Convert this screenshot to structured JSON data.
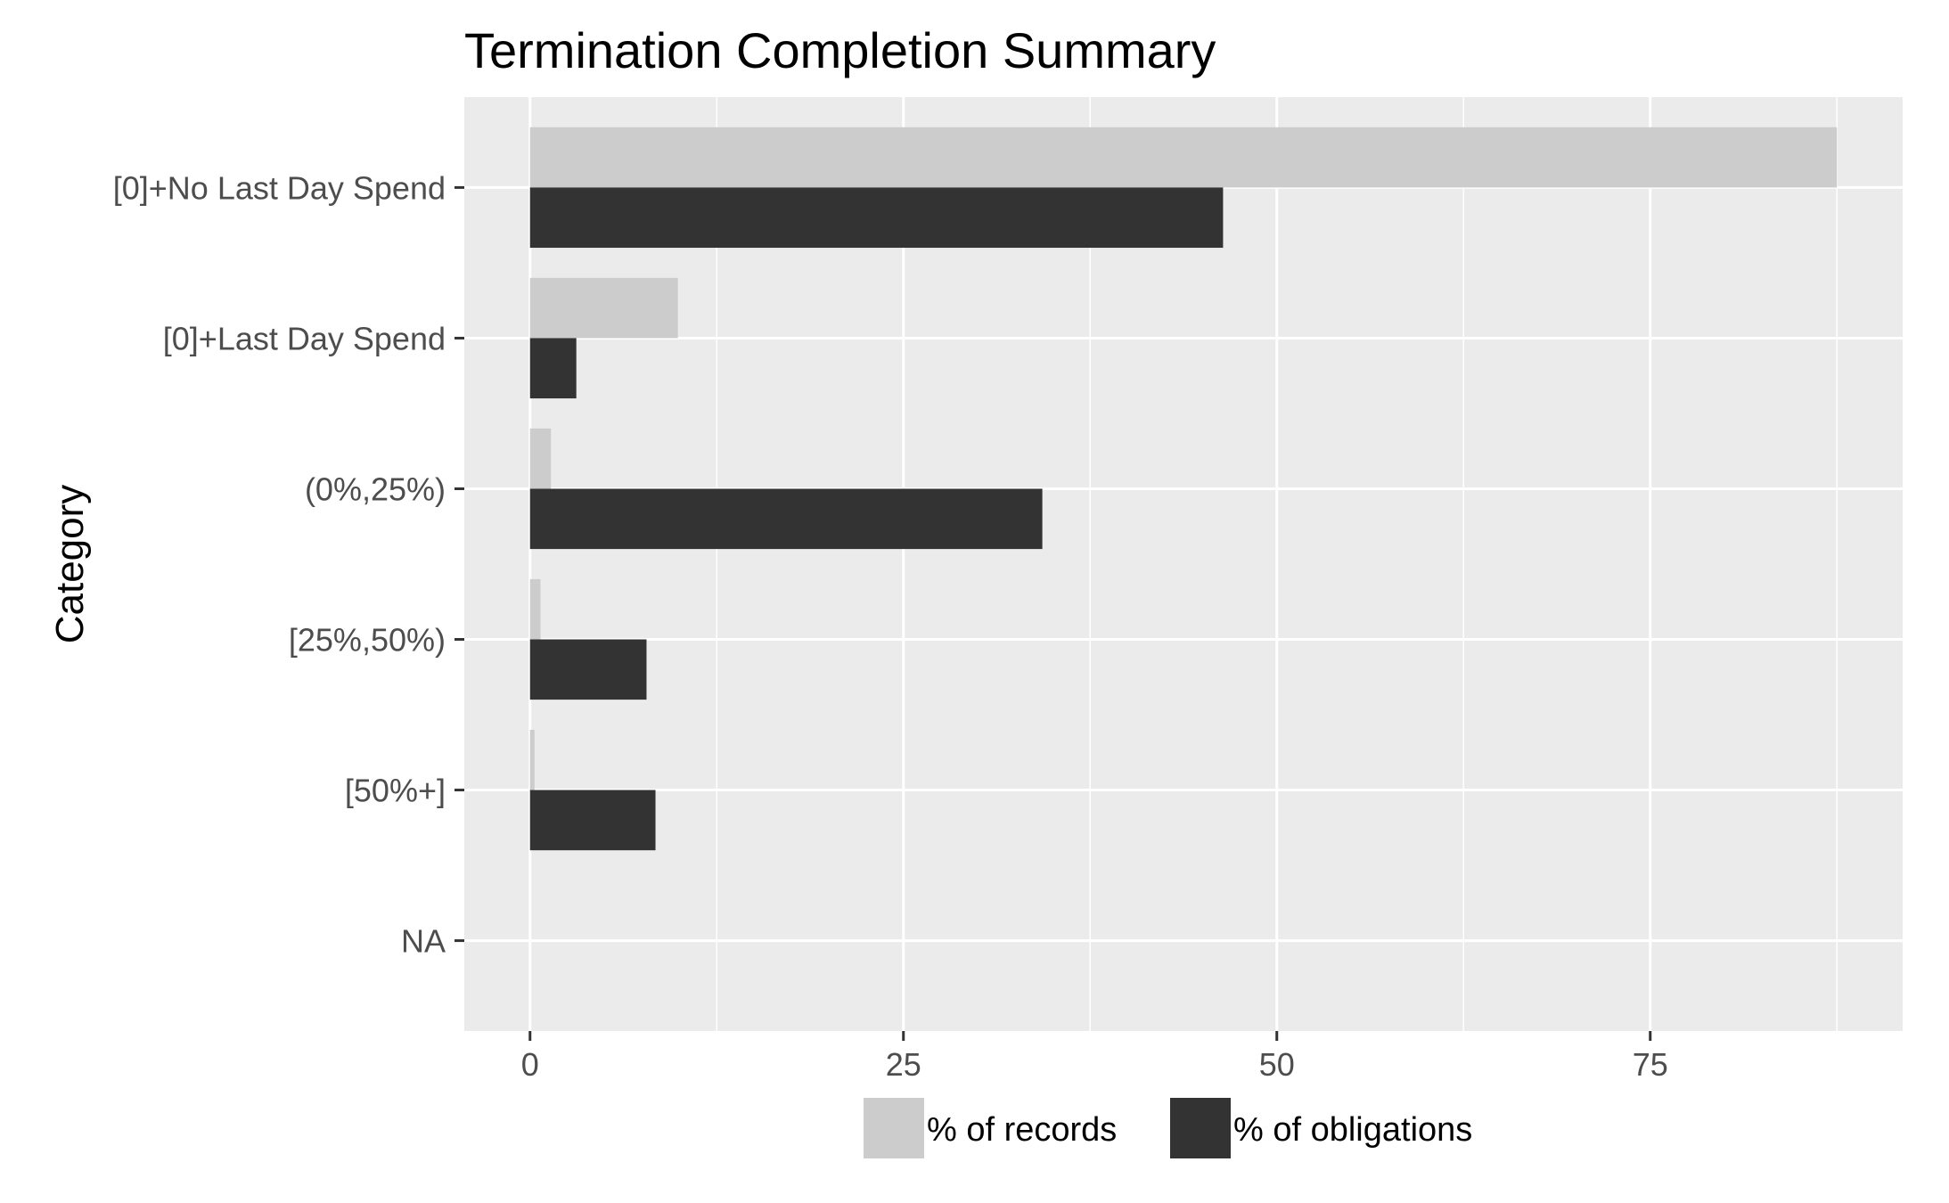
{
  "chart_data": {
    "type": "bar",
    "orientation": "horizontal",
    "title": "Termination Completion Summary",
    "xlabel": "",
    "ylabel": "Category",
    "categories": [
      "[0]+No Last Day Spend",
      "[0]+Last Day Spend",
      "(0%,25%)",
      "[25%,50%)",
      "[50%+]",
      "NA"
    ],
    "series": [
      {
        "name": "% of records",
        "color": "#cccccc",
        "values": [
          87.5,
          9.9,
          1.4,
          0.7,
          0.3,
          0
        ]
      },
      {
        "name": "% of obligations",
        "color": "#333333",
        "values": [
          46.4,
          3.1,
          34.3,
          7.8,
          8.4,
          0
        ]
      }
    ],
    "xlim": [
      -4.4,
      91.9
    ],
    "xticks": [
      0,
      25,
      50,
      75
    ],
    "grid": true,
    "legend_position": "bottom"
  }
}
